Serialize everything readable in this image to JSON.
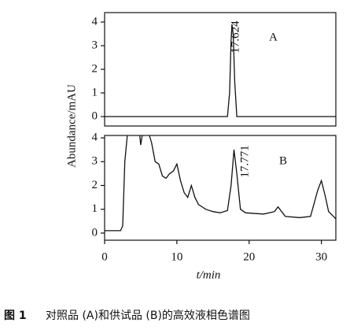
{
  "ylabel": "Abundance/mAU",
  "figure_label": "图 1",
  "caption": "对照品 (A)和供试品 (B)的高效液相色谱图",
  "chart_data": [
    {
      "type": "line",
      "panel_label": "A",
      "peak_label": "17.624",
      "xlim": [
        0,
        32
      ],
      "ylim": [
        -0.4,
        4.4
      ],
      "yticks": [
        0,
        1,
        2,
        3,
        4
      ],
      "series": [
        {
          "color": "#111111",
          "x": [
            0,
            17.0,
            17.3,
            17.5,
            17.62,
            17.8,
            18.0,
            18.3,
            32
          ],
          "values": [
            0,
            0,
            1,
            3.2,
            3.9,
            3.5,
            1.5,
            0,
            0
          ]
        }
      ]
    },
    {
      "type": "line",
      "panel_label": "B",
      "peak_label": "17.771",
      "xlabel": "t/min",
      "xlim": [
        0,
        32
      ],
      "ylim": [
        -0.3,
        4.1
      ],
      "yticks": [
        0,
        1,
        2,
        3,
        4
      ],
      "xticks": [
        0,
        10,
        20,
        30
      ],
      "series": [
        {
          "color": "#111111",
          "x": [
            0,
            2.2,
            2.5,
            2.8,
            3.2,
            4.8,
            5.0,
            5.3,
            6,
            6.5,
            7,
            7.5,
            8,
            8.5,
            9,
            9.5,
            10,
            10.5,
            11,
            11.5,
            12,
            12.5,
            13,
            14,
            15,
            16,
            17,
            17.5,
            17.9,
            18.3,
            18.8,
            19.5,
            22,
            23.5,
            24,
            24.5,
            25,
            27,
            28.5,
            29.5,
            30,
            30.5,
            31,
            32
          ],
          "values": [
            0.1,
            0.1,
            0.3,
            3.0,
            4.3,
            4.3,
            3.7,
            4.3,
            4.3,
            3.8,
            3.0,
            2.9,
            2.4,
            2.3,
            2.5,
            2.6,
            2.9,
            2.2,
            1.7,
            1.5,
            2.0,
            1.5,
            1.2,
            1.0,
            0.9,
            0.85,
            0.95,
            2.0,
            3.5,
            2.5,
            1.0,
            0.85,
            0.8,
            0.9,
            1.1,
            0.9,
            0.7,
            0.65,
            0.7,
            1.8,
            2.2,
            1.6,
            0.9,
            0.6
          ]
        }
      ]
    }
  ]
}
